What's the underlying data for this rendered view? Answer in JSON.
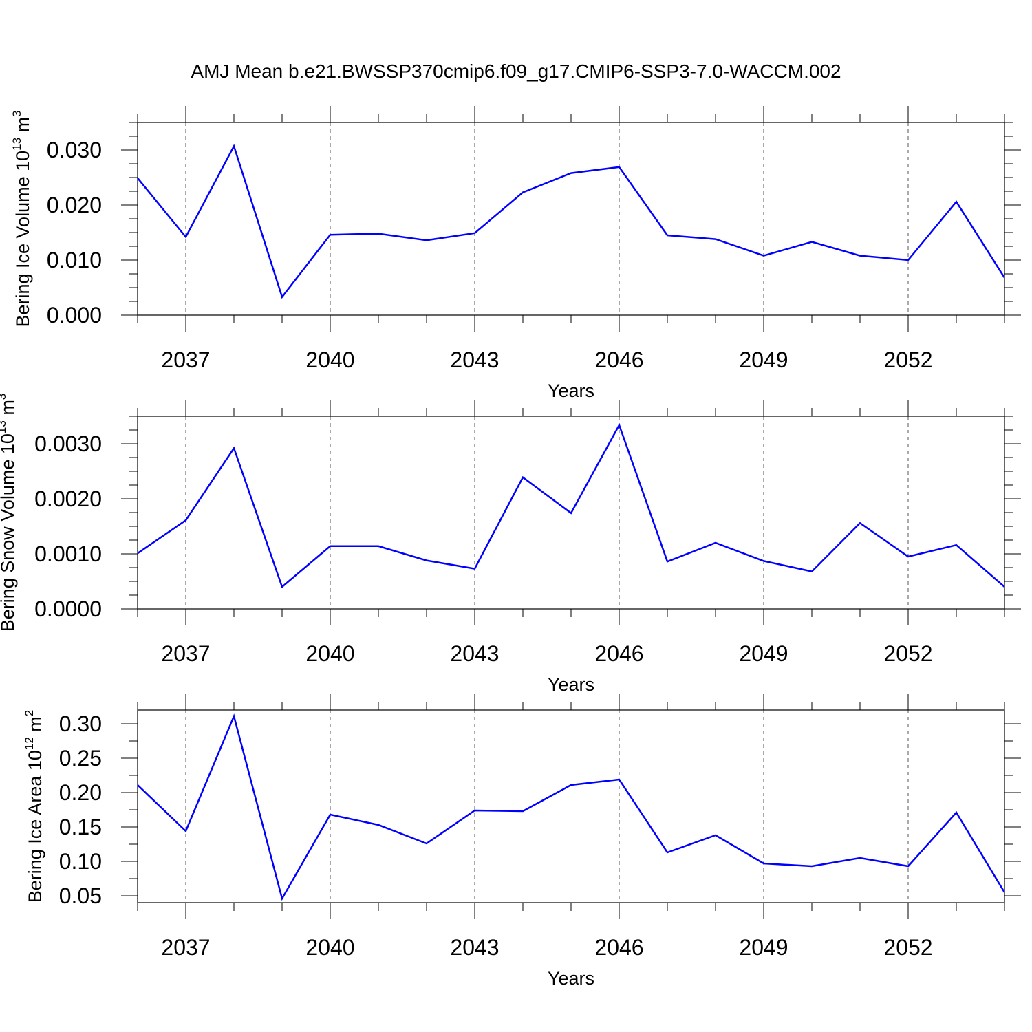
{
  "chart_data": [
    {
      "type": "line",
      "title": "AMJ Mean b.e21.BWSSP370cmip6.f09_g17.CMIP6-SSP3-7.0-WACCM.002",
      "xlabel": "Years",
      "ylabel": {
        "text": "Bering Ice Volume 10",
        "exponent": "13",
        "unit": " m",
        "unit_exponent": "3"
      },
      "xlim": [
        2036,
        2054
      ],
      "ylim": [
        0,
        0.035
      ],
      "x_ticks": [
        2037,
        2040,
        2043,
        2046,
        2049,
        2052
      ],
      "x_tick_labels": [
        "2037",
        "2040",
        "2043",
        "2046",
        "2049",
        "2052"
      ],
      "y_ticks": [
        0,
        0.01,
        0.02,
        0.03
      ],
      "y_tick_labels": [
        "0.000",
        "0.010",
        "0.020",
        "0.030"
      ],
      "grid": "vertical dashed at major x ticks",
      "x": [
        2036,
        2037,
        2038,
        2039,
        2040,
        2041,
        2042,
        2043,
        2044,
        2045,
        2046,
        2047,
        2048,
        2049,
        2050,
        2051,
        2052,
        2053,
        2054
      ],
      "series": [
        {
          "color": "#0000ff",
          "values": [
            0.0249,
            0.0142,
            0.0307,
            0.0033,
            0.0146,
            0.0148,
            0.0136,
            0.0149,
            0.0223,
            0.0258,
            0.0269,
            0.0145,
            0.0138,
            0.0108,
            0.0133,
            0.0108,
            0.01,
            0.0206,
            0.0068
          ]
        }
      ]
    },
    {
      "type": "line",
      "xlabel": "Years",
      "ylabel": {
        "text": "Bering Snow Volume 10",
        "exponent": "13",
        "unit": " m",
        "unit_exponent": "3"
      },
      "xlim": [
        2036,
        2054
      ],
      "ylim": [
        0,
        0.0035
      ],
      "x_ticks": [
        2037,
        2040,
        2043,
        2046,
        2049,
        2052
      ],
      "x_tick_labels": [
        "2037",
        "2040",
        "2043",
        "2046",
        "2049",
        "2052"
      ],
      "y_ticks": [
        0,
        0.001,
        0.002,
        0.003
      ],
      "y_tick_labels": [
        "0.0000",
        "0.0010",
        "0.0020",
        "0.0030"
      ],
      "grid": "vertical dashed at major x ticks",
      "x": [
        2036,
        2037,
        2038,
        2039,
        2040,
        2041,
        2042,
        2043,
        2044,
        2045,
        2046,
        2047,
        2048,
        2049,
        2050,
        2051,
        2052,
        2053,
        2054
      ],
      "series": [
        {
          "color": "#0000ff",
          "values": [
            0.00101,
            0.00161,
            0.00292,
            0.0004,
            0.00114,
            0.00114,
            0.00088,
            0.00073,
            0.00239,
            0.00174,
            0.00334,
            0.00086,
            0.0012,
            0.00087,
            0.00068,
            0.00156,
            0.00095,
            0.00116,
            0.0004
          ]
        }
      ]
    },
    {
      "type": "line",
      "xlabel": "Years",
      "ylabel": {
        "text": "Bering Ice Area 10",
        "exponent": "12",
        "unit": " m",
        "unit_exponent": "2"
      },
      "xlim": [
        2036,
        2054
      ],
      "ylim": [
        0.04,
        0.32
      ],
      "x_ticks": [
        2037,
        2040,
        2043,
        2046,
        2049,
        2052
      ],
      "x_tick_labels": [
        "2037",
        "2040",
        "2043",
        "2046",
        "2049",
        "2052"
      ],
      "y_ticks": [
        0.05,
        0.1,
        0.15,
        0.2,
        0.25,
        0.3
      ],
      "y_tick_labels": [
        "0.05",
        "0.10",
        "0.15",
        "0.20",
        "0.25",
        "0.30"
      ],
      "grid": "vertical dashed at major x ticks",
      "x": [
        2036,
        2037,
        2038,
        2039,
        2040,
        2041,
        2042,
        2043,
        2044,
        2045,
        2046,
        2047,
        2048,
        2049,
        2050,
        2051,
        2052,
        2053,
        2054
      ],
      "series": [
        {
          "color": "#0000ff",
          "values": [
            0.211,
            0.144,
            0.311,
            0.046,
            0.168,
            0.153,
            0.126,
            0.174,
            0.173,
            0.211,
            0.219,
            0.113,
            0.138,
            0.097,
            0.093,
            0.105,
            0.093,
            0.171,
            0.055
          ]
        }
      ]
    }
  ]
}
